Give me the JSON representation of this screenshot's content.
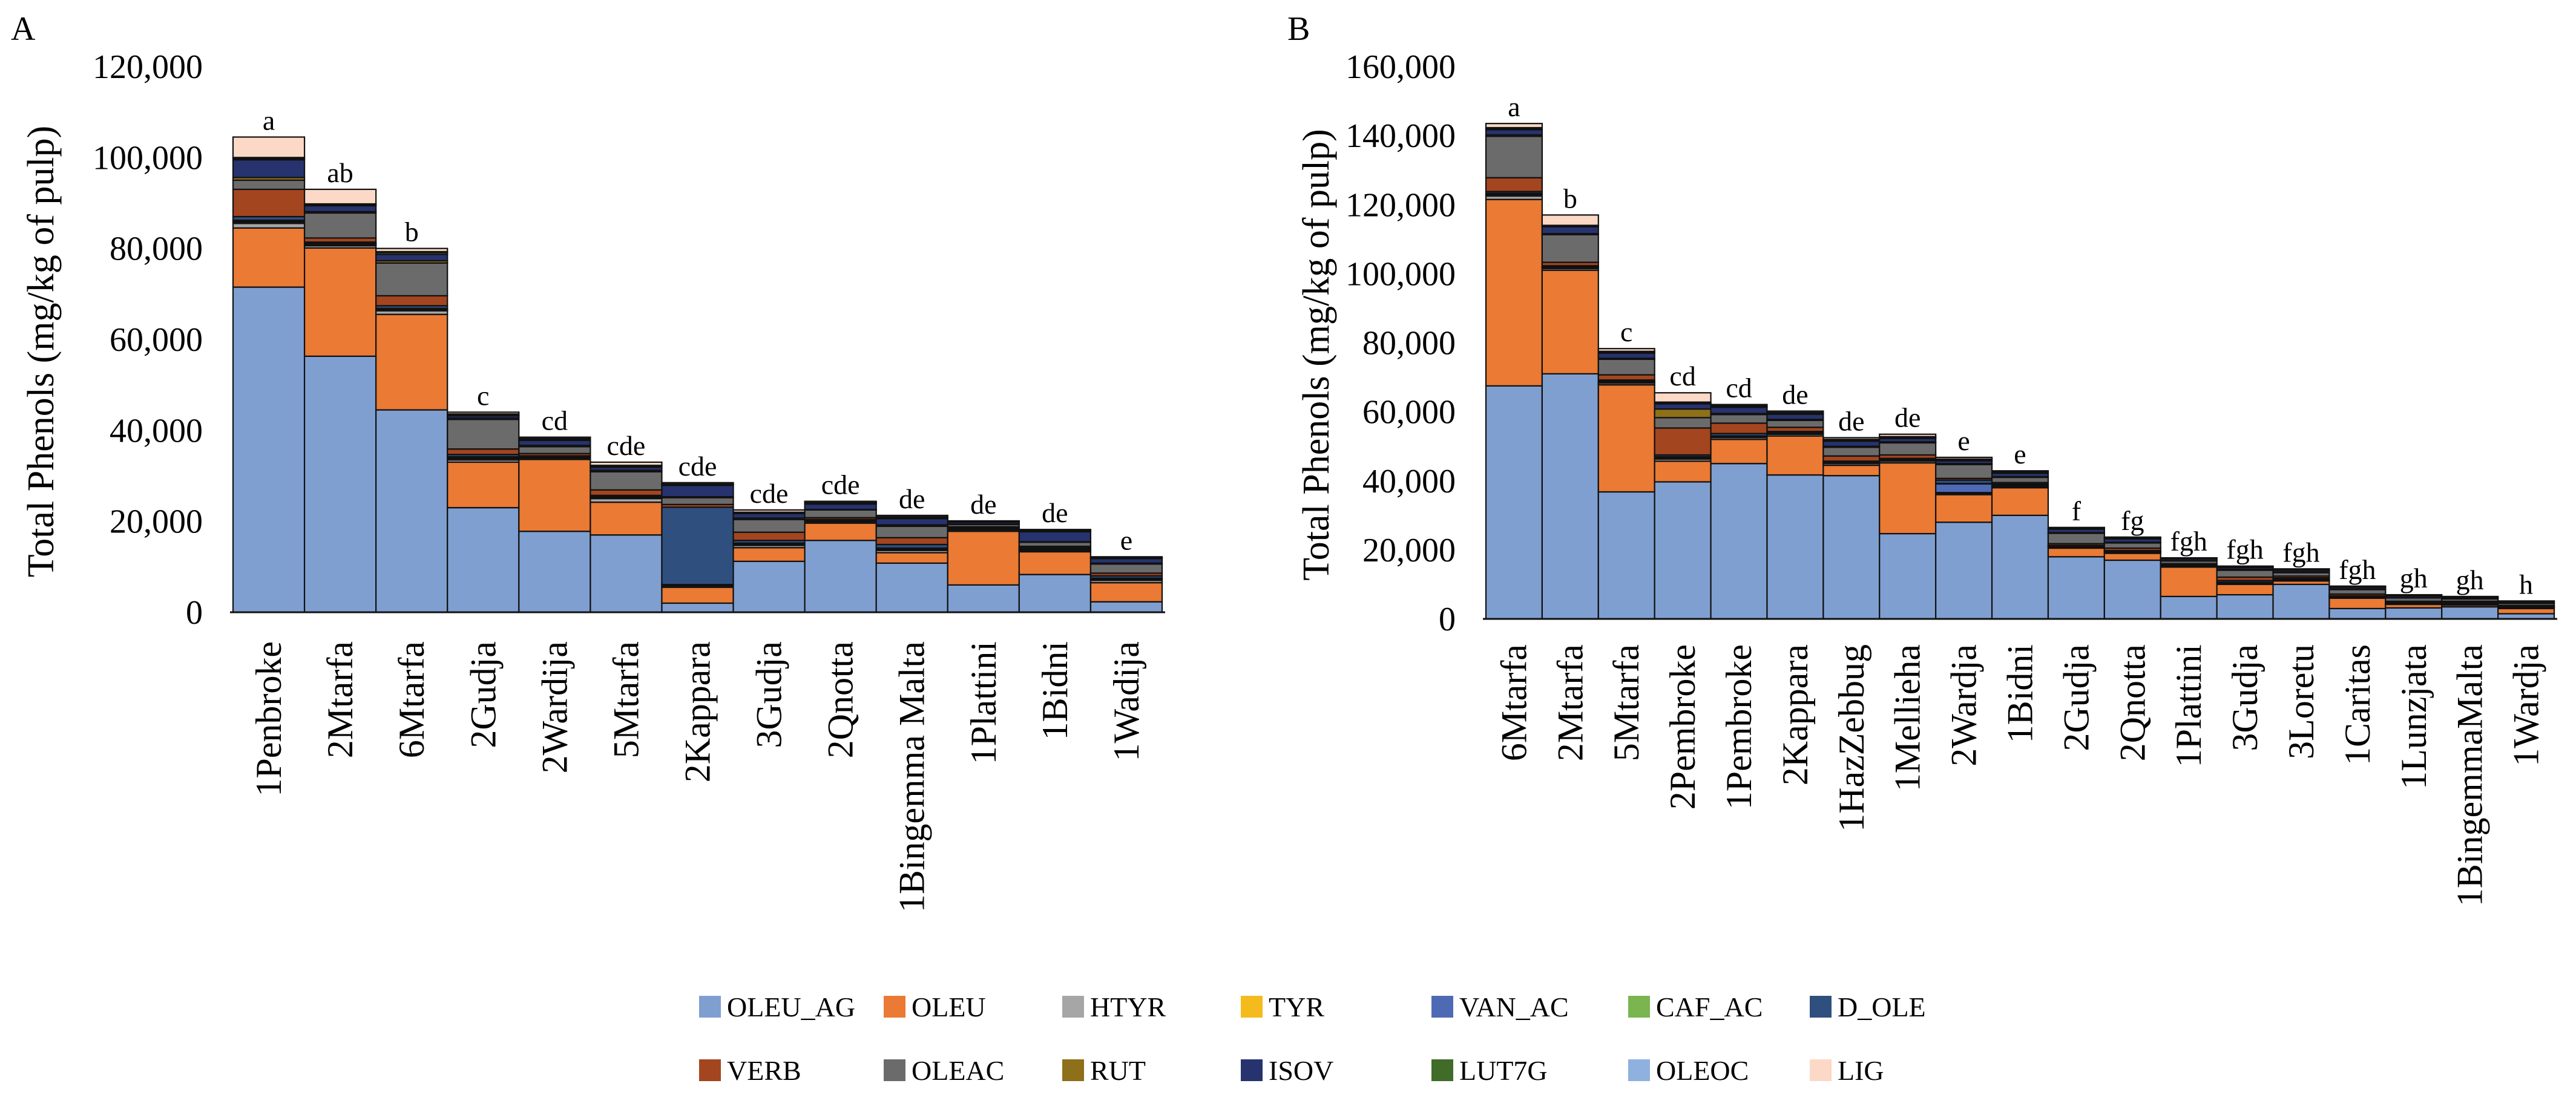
{
  "series_colors": {
    "OLEU_AG": "#7f9fd0",
    "OLEU": "#ea7a34",
    "HTYR": "#a6a6a6",
    "TYR": "#f5bb1c",
    "VAN_AC": "#4f6ab4",
    "CAF_AC": "#7ab550",
    "D_OLE": "#2f4f7e",
    "VERB": "#a3451f",
    "OLEAC": "#6b6b6b",
    "RUT": "#8e6f1a",
    "ISOV": "#27336e",
    "LUT7G": "#406b28",
    "OLEOC": "#8eb1e0",
    "LIG": "#fbd9c6"
  },
  "legend": {
    "row1": [
      "OLEU_AG",
      "OLEU",
      "HTYR",
      "TYR",
      "VAN_AC",
      "CAF_AC",
      "D_OLE"
    ],
    "row2": [
      "VERB",
      "OLEAC",
      "RUT",
      "ISOV",
      "LUT7G",
      "OLEOC",
      "LIG"
    ]
  },
  "chart_data": [
    {
      "panel": "A",
      "type": "bar",
      "stacked": true,
      "ylabel": "Total Phenols (mg/kg of pulp)",
      "ylim": [
        0,
        120000
      ],
      "yticks": [
        0,
        20000,
        40000,
        60000,
        80000,
        100000,
        120000
      ],
      "ytick_labels": [
        "0",
        "20,000",
        "40,000",
        "60,000",
        "80,000",
        "100,000",
        "120,000"
      ],
      "categories": [
        "1Penbroke",
        "2Mtarfa",
        "6Mtarfa",
        "2Gudja",
        "2Wardija",
        "5Mtarfa",
        "2Kappara",
        "3Gudja",
        "2Qnotta",
        "1Bingemma Malta",
        "1Plattini",
        "1Bidni",
        "1Wadija"
      ],
      "significance": [
        "a",
        "ab",
        "b",
        "c",
        "cd",
        "cde",
        "cde",
        "cde",
        "cde",
        "de",
        "de",
        "de",
        "e"
      ],
      "series": [
        {
          "name": "OLEU_AG",
          "values": [
            71500,
            56300,
            44500,
            23000,
            17800,
            17000,
            2000,
            11200,
            15800,
            10800,
            6000,
            8300,
            2300
          ]
        },
        {
          "name": "OLEU",
          "values": [
            13000,
            23800,
            21000,
            10000,
            15800,
            7200,
            3500,
            3000,
            3800,
            2300,
            11800,
            5000,
            4200
          ]
        },
        {
          "name": "HTYR",
          "values": [
            1000,
            500,
            800,
            500,
            200,
            800,
            300,
            500,
            300,
            500,
            300,
            300,
            500
          ]
        },
        {
          "name": "TYR",
          "values": [
            300,
            200,
            200,
            300,
            100,
            200,
            100,
            200,
            100,
            200,
            100,
            100,
            200
          ]
        },
        {
          "name": "VAN_AC",
          "values": [
            200,
            200,
            200,
            200,
            100,
            100,
            100,
            200,
            100,
            200,
            100,
            100,
            200
          ]
        },
        {
          "name": "CAF_AC",
          "values": [
            200,
            100,
            100,
            200,
            100,
            100,
            100,
            100,
            100,
            100,
            100,
            100,
            100
          ]
        },
        {
          "name": "D_OLE",
          "values": [
            800,
            300,
            600,
            500,
            300,
            300,
            17000,
            600,
            200,
            800,
            200,
            300,
            500
          ]
        },
        {
          "name": "VERB",
          "values": [
            6000,
            900,
            2200,
            1200,
            500,
            1200,
            600,
            1800,
            400,
            1500,
            200,
            300,
            600
          ]
        },
        {
          "name": "OLEAC",
          "values": [
            2000,
            5500,
            7200,
            6500,
            1500,
            4000,
            1500,
            2800,
            1700,
            2500,
            500,
            900,
            2000
          ]
        },
        {
          "name": "RUT",
          "values": [
            600,
            300,
            500,
            300,
            300,
            300,
            200,
            300,
            100,
            300,
            100,
            100,
            200
          ]
        },
        {
          "name": "ISOV",
          "values": [
            3900,
            1300,
            1400,
            500,
            1100,
            700,
            2500,
            1000,
            1200,
            1400,
            400,
            2200,
            1000
          ]
        },
        {
          "name": "LUT7G",
          "values": [
            300,
            200,
            400,
            200,
            200,
            200,
            200,
            200,
            200,
            200,
            100,
            200,
            100
          ]
        },
        {
          "name": "OLEOC",
          "values": [
            200,
            200,
            200,
            200,
            200,
            200,
            100,
            100,
            100,
            200,
            100,
            100,
            100
          ]
        },
        {
          "name": "LIG",
          "values": [
            4500,
            3200,
            700,
            400,
            300,
            700,
            300,
            500,
            300,
            300,
            100,
            200,
            200
          ]
        }
      ]
    },
    {
      "panel": "B",
      "type": "bar",
      "stacked": true,
      "ylabel": "Total Phenols (mg/kg of pulp)",
      "ylim": [
        0,
        160000
      ],
      "yticks": [
        0,
        20000,
        40000,
        60000,
        80000,
        100000,
        120000,
        140000,
        160000
      ],
      "ytick_labels": [
        "0",
        "20,000",
        "40,000",
        "60,000",
        "80,000",
        "100,000",
        "120,000",
        "140,000",
        "160,000"
      ],
      "categories": [
        "6Mtarfa",
        "2Mtarfa",
        "5Mtarfa",
        "2Pembroke",
        "1Pembroke",
        "2Kappara",
        "1HazZebbug",
        "1Mellieha",
        "2Wardja",
        "1Bidni",
        "2Gudja",
        "2Qnotta",
        "1Plattini",
        "3Gudja",
        "3Loretu",
        "1Caritas",
        "1Lunzjata",
        "1BingemmaMalta",
        "1Wardja"
      ],
      "significance": [
        "a",
        "b",
        "c",
        "cd",
        "cd",
        "de",
        "de",
        "de",
        "e",
        "e",
        "f",
        "fg",
        "fgh",
        "fgh",
        "fgh",
        "fgh",
        "gh",
        "gh",
        "h"
      ],
      "series": [
        {
          "name": "OLEU_AG",
          "values": [
            67500,
            71000,
            36800,
            39700,
            45000,
            41700,
            41500,
            24700,
            28000,
            30000,
            18000,
            17000,
            6500,
            7000,
            10000,
            3000,
            3200,
            3500,
            1500
          ]
        },
        {
          "name": "OLEU",
          "values": [
            54000,
            30000,
            31000,
            6000,
            7000,
            11300,
            3000,
            20500,
            8000,
            8000,
            2500,
            2000,
            8500,
            3000,
            1000,
            3000,
            1000,
            500,
            1500
          ]
        },
        {
          "name": "HTYR",
          "values": [
            1000,
            500,
            500,
            600,
            500,
            500,
            500,
            500,
            400,
            300,
            300,
            300,
            200,
            300,
            300,
            200,
            200,
            200,
            200
          ]
        },
        {
          "name": "TYR",
          "values": [
            400,
            200,
            300,
            300,
            200,
            200,
            200,
            200,
            200,
            200,
            100,
            100,
            100,
            100,
            100,
            100,
            100,
            100,
            100
          ]
        },
        {
          "name": "VAN_AC",
          "values": [
            200,
            200,
            200,
            200,
            200,
            200,
            100,
            200,
            2500,
            200,
            100,
            100,
            100,
            100,
            100,
            100,
            100,
            100,
            100
          ]
        },
        {
          "name": "CAF_AC",
          "values": [
            200,
            100,
            100,
            200,
            100,
            100,
            100,
            100,
            100,
            100,
            100,
            100,
            100,
            100,
            100,
            100,
            100,
            100,
            100
          ]
        },
        {
          "name": "D_OLE",
          "values": [
            500,
            300,
            300,
            500,
            700,
            300,
            300,
            300,
            1000,
            300,
            200,
            200,
            200,
            500,
            300,
            200,
            100,
            300,
            100
          ]
        },
        {
          "name": "VERB",
          "values": [
            4000,
            1000,
            1500,
            7800,
            3000,
            1200,
            1500,
            1000,
            500,
            400,
            500,
            700,
            300,
            1000,
            500,
            500,
            300,
            300,
            300
          ]
        },
        {
          "name": "OLEAC",
          "values": [
            12000,
            8000,
            4500,
            3000,
            2500,
            2000,
            2500,
            3500,
            4000,
            1500,
            3000,
            1500,
            800,
            2000,
            1000,
            1300,
            1000,
            700,
            600
          ]
        },
        {
          "name": "RUT",
          "values": [
            400,
            300,
            300,
            2500,
            300,
            300,
            300,
            300,
            300,
            200,
            200,
            200,
            100,
            300,
            200,
            200,
            100,
            100,
            100
          ]
        },
        {
          "name": "ISOV",
          "values": [
            1500,
            2000,
            1500,
            1500,
            1800,
            1500,
            1500,
            1000,
            800,
            1000,
            1000,
            1000,
            500,
            500,
            500,
            500,
            500,
            300,
            300
          ]
        },
        {
          "name": "LUT7G",
          "values": [
            300,
            200,
            200,
            200,
            200,
            200,
            200,
            200,
            200,
            200,
            100,
            100,
            100,
            100,
            100,
            100,
            100,
            100,
            100
          ]
        },
        {
          "name": "OLEOC",
          "values": [
            300,
            200,
            300,
            300,
            300,
            300,
            300,
            300,
            300,
            200,
            200,
            200,
            100,
            100,
            100,
            100,
            100,
            100,
            100
          ]
        },
        {
          "name": "LIG",
          "values": [
            1200,
            3000,
            800,
            2700,
            300,
            400,
            500,
            700,
            500,
            300,
            200,
            200,
            100,
            200,
            200,
            100,
            100,
            100,
            100
          ]
        }
      ]
    }
  ]
}
